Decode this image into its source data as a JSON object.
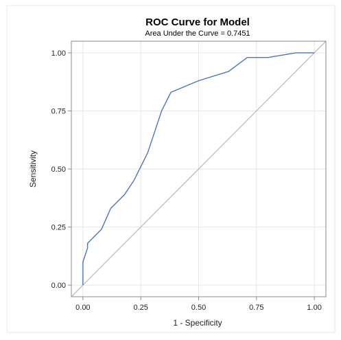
{
  "chart_data": {
    "type": "line",
    "title": "ROC Curve for Model",
    "subtitle": "Area Under the Curve = 0.7451",
    "xlabel": "1 - Specificity",
    "ylabel": "Sensitivity",
    "xlim": [
      -0.05,
      1.05
    ],
    "ylim": [
      -0.05,
      1.05
    ],
    "xticks": [
      "0.00",
      "0.25",
      "0.50",
      "0.75",
      "1.00"
    ],
    "yticks": [
      "0.00",
      "0.25",
      "0.50",
      "0.75",
      "1.00"
    ],
    "grid": true,
    "series": [
      {
        "x": [
          0,
          0,
          0.01,
          0.02,
          0.02,
          0.08,
          0.12,
          0.18,
          0.22,
          0.28,
          0.34,
          0.38,
          0.5,
          0.63,
          0.71,
          0.8,
          0.92,
          1.0
        ],
        "y": [
          0,
          0.1,
          0.13,
          0.16,
          0.18,
          0.24,
          0.33,
          0.39,
          0.45,
          0.57,
          0.75,
          0.83,
          0.88,
          0.92,
          0.98,
          0.98,
          1.0,
          1.0
        ],
        "color": "#4a75b8"
      },
      {
        "x": [
          -0.05,
          1.05
        ],
        "y": [
          -0.05,
          1.05
        ],
        "color": "#bdbdbd"
      }
    ]
  }
}
